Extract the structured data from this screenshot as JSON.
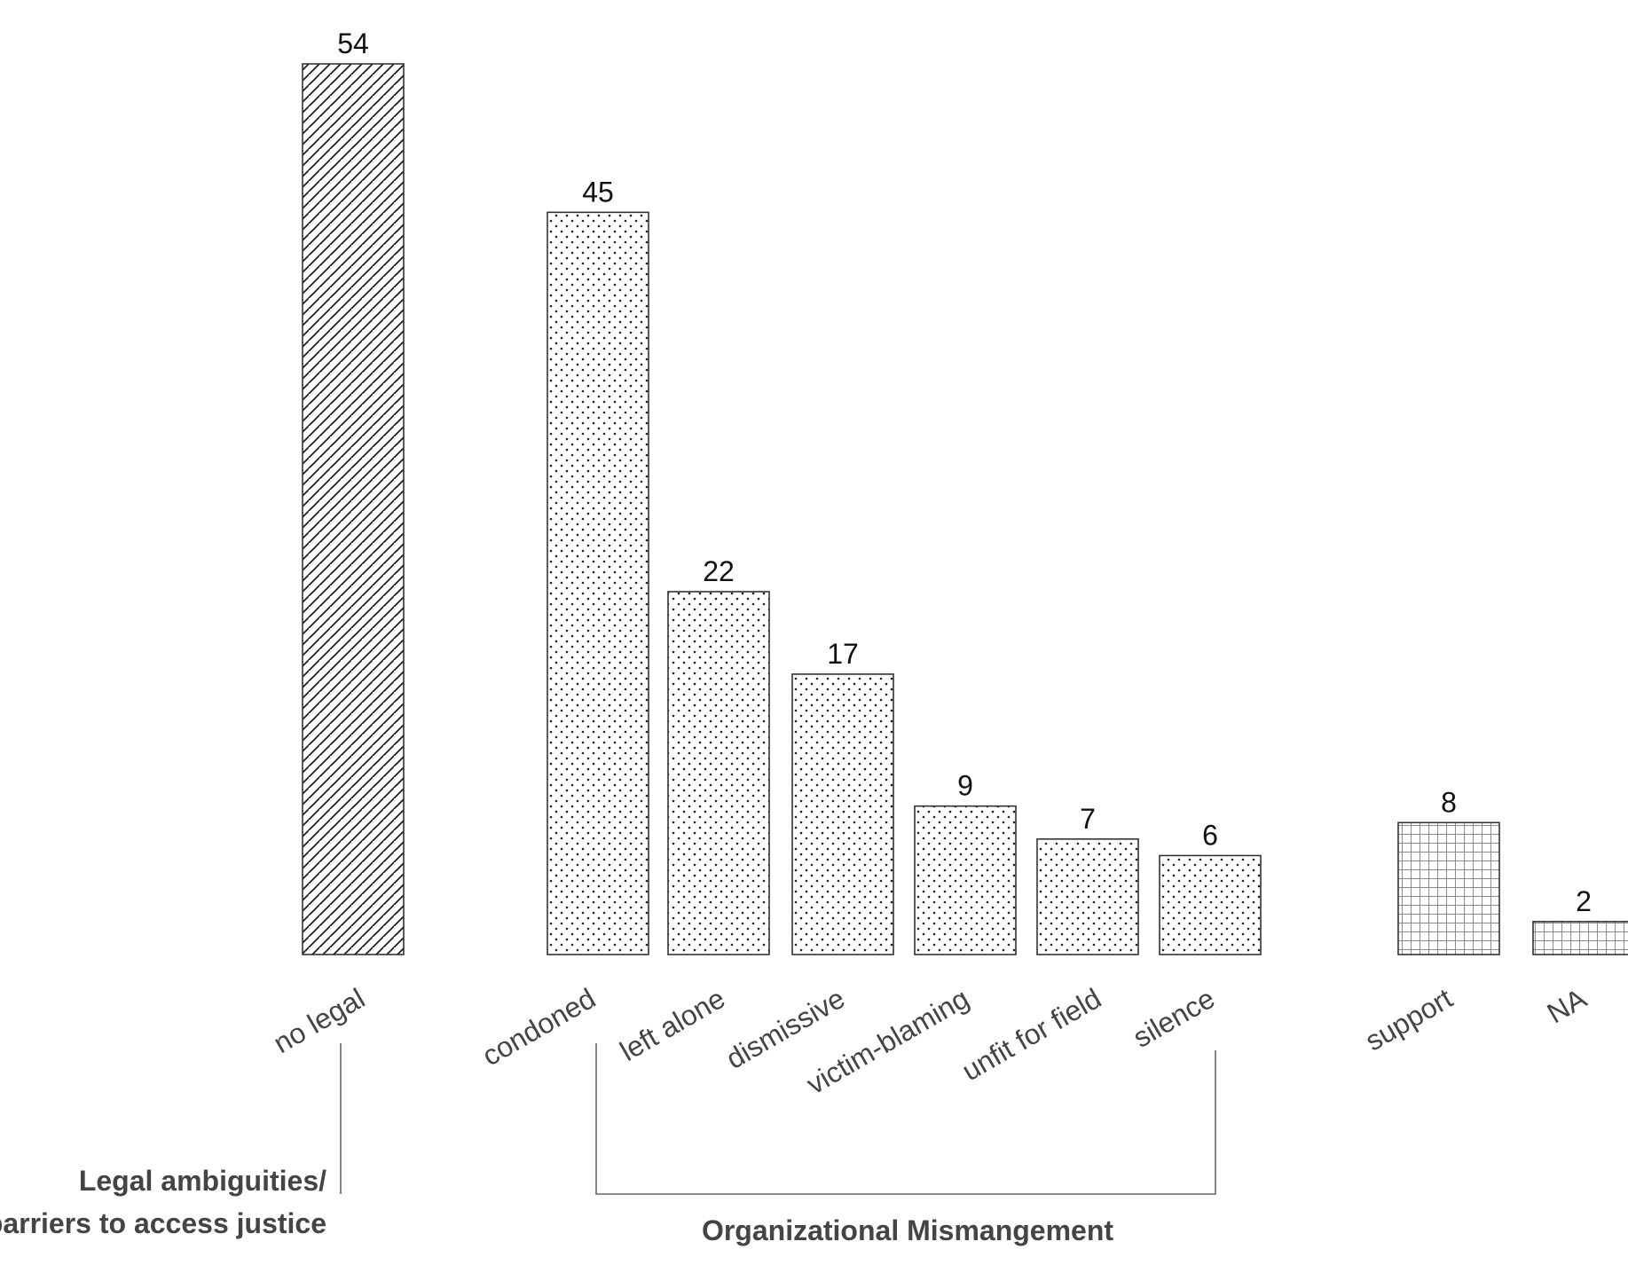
{
  "chart_data": {
    "type": "bar",
    "categories": [
      "no legal",
      "condoned",
      "left alone",
      "dismissive",
      "victim-blaming",
      "unfit for field",
      "silence",
      "support",
      "NA"
    ],
    "values": [
      54,
      45,
      22,
      17,
      9,
      7,
      6,
      8,
      2
    ],
    "data_labels": [
      "54",
      "45",
      "22",
      "17",
      "9",
      "7",
      "6",
      "8",
      "2"
    ],
    "bar_patterns": [
      "diagonal-hatch",
      "dots",
      "dots",
      "dots",
      "dots",
      "dots",
      "dots",
      "grid",
      "grid"
    ],
    "ylim": [
      0,
      54
    ],
    "grid": false,
    "legend": "none",
    "groups": [
      {
        "label_lines": [
          "Legal ambiguities/",
          "barriers to access justice"
        ],
        "members": [
          "no legal"
        ]
      },
      {
        "label_lines": [
          "Organizational Mismangement"
        ],
        "members": [
          "condoned",
          "left alone",
          "dismissive",
          "victim-blaming",
          "unfit for field",
          "silence"
        ]
      }
    ]
  }
}
